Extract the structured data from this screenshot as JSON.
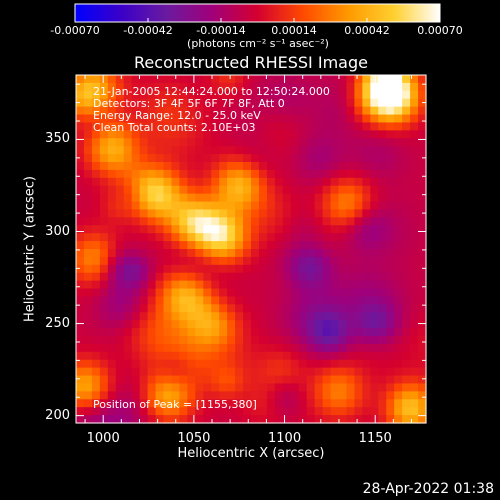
{
  "colorbar": {
    "ticks": [
      "-0.00070",
      "-0.00042",
      "-0.00014",
      "0.00014",
      "0.00042",
      "0.00070"
    ],
    "tick_values": [
      -0.0007,
      -0.00042,
      -0.00014,
      0.00014,
      0.00042,
      0.0007
    ],
    "unit": "(photons cm⁻² s⁻¹ asec⁻²)",
    "range": [
      -0.0007,
      0.0007
    ],
    "colors": [
      "#0000ff",
      "#3a00c8",
      "#6a1aa0",
      "#a0007a",
      "#d40030",
      "#ff4a00",
      "#ff9a00",
      "#ffd030",
      "#ffffff"
    ]
  },
  "plot": {
    "title": "Reconstructed RHESSI Image",
    "annotations": [
      "21-Jan-2005 12:44:24.000 to 12:50:24.000",
      "Detectors: 3F 4F 5F 6F 7F 8F, Att 0",
      "Energy Range: 12.0 - 25.0 keV",
      "Clean    Total counts: 2.10E+03"
    ],
    "position_label": "Position of Peak = [1155,380]"
  },
  "chart_data": {
    "type": "heatmap",
    "title": "Reconstructed RHESSI Image",
    "xlabel": "Heliocentric X (arcsec)",
    "ylabel": "Heliocentric Y (arcsec)",
    "xlim": [
      985,
      1178
    ],
    "ylim": [
      196,
      385
    ],
    "x_ticks": [
      1000,
      1050,
      1100,
      1150
    ],
    "y_ticks": [
      200,
      250,
      300,
      350
    ],
    "colorbar_range": [
      -0.0007,
      0.0007
    ],
    "peak": [
      1155,
      380
    ],
    "hotspots": [
      {
        "x": 1155,
        "y": 380,
        "level": 1.0
      },
      {
        "x": 1160,
        "y": 372,
        "level": 0.9
      },
      {
        "x": 1065,
        "y": 297,
        "level": 0.95
      },
      {
        "x": 1050,
        "y": 305,
        "level": 0.85
      },
      {
        "x": 1030,
        "y": 320,
        "level": 0.8
      },
      {
        "x": 1005,
        "y": 345,
        "level": 0.7
      },
      {
        "x": 1045,
        "y": 265,
        "level": 0.7
      },
      {
        "x": 1075,
        "y": 325,
        "level": 0.75
      },
      {
        "x": 990,
        "y": 215,
        "level": 0.75
      },
      {
        "x": 1035,
        "y": 210,
        "level": 0.7
      },
      {
        "x": 1135,
        "y": 315,
        "level": 0.55
      },
      {
        "x": 1060,
        "y": 250,
        "level": 0.6
      },
      {
        "x": 1130,
        "y": 213,
        "level": 0.5
      },
      {
        "x": 1170,
        "y": 205,
        "level": 0.6
      },
      {
        "x": 990,
        "y": 375,
        "level": 0.75
      },
      {
        "x": 995,
        "y": 285,
        "level": 0.55
      }
    ],
    "coldspots": [
      {
        "x": 1125,
        "y": 245,
        "level": 1.0
      },
      {
        "x": 1040,
        "y": 225,
        "level": 0.9
      },
      {
        "x": 1010,
        "y": 280,
        "level": 0.85
      },
      {
        "x": 1115,
        "y": 280,
        "level": 0.8
      },
      {
        "x": 1150,
        "y": 250,
        "level": 0.85
      },
      {
        "x": 1100,
        "y": 210,
        "level": 0.7
      }
    ]
  },
  "footer": {
    "timestamp": "28-Apr-2022 01:38"
  }
}
